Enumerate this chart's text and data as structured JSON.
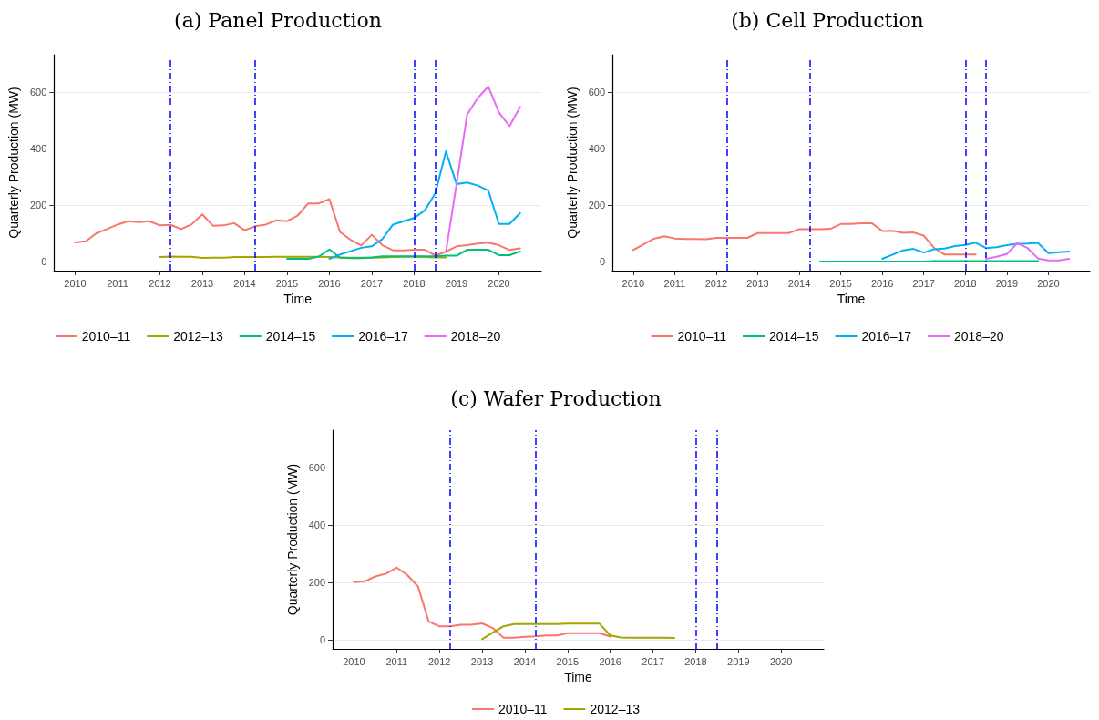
{
  "chart_data": [
    {
      "type": "line",
      "title": "(a) Panel Production",
      "xlabel": "Time",
      "ylabel": "Quarterly Production (MW)",
      "xlim": [
        2009.5,
        2021
      ],
      "xticks": [
        2010,
        2011,
        2012,
        2013,
        2014,
        2015,
        2016,
        2017,
        2018,
        2019,
        2020
      ],
      "ylim": [
        -32,
        732
      ],
      "yticks": [
        0,
        200,
        400,
        600
      ],
      "grid": "y",
      "legend": "bottom",
      "marker": "none",
      "line_style": "solid",
      "ref_lines": [
        {
          "axis": "x",
          "value": 2012.25,
          "color": "#0000ff",
          "line_style": "dashed"
        },
        {
          "axis": "x",
          "value": 2014.25,
          "color": "#0000ff",
          "line_style": "dashed"
        },
        {
          "axis": "x",
          "value": 2018,
          "color": "#0000ff",
          "line_style": "dashed"
        },
        {
          "axis": "x",
          "value": 2018.5,
          "color": "#0000ff",
          "line_style": "dashed"
        }
      ],
      "series": [
        {
          "name": "2010–11",
          "color": "#f8766d",
          "x": [
            2010,
            2010.25,
            2010.5,
            2010.75,
            2011,
            2011.25,
            2011.5,
            2011.75,
            2012,
            2012.25,
            2012.5,
            2012.75,
            2013,
            2013.25,
            2013.5,
            2013.75,
            2014,
            2014.25,
            2014.5,
            2014.75,
            2015,
            2015.25,
            2015.5,
            2015.75,
            2016,
            2016.25,
            2016.5,
            2016.75,
            2017,
            2017.25,
            2017.5,
            2017.75,
            2018,
            2018.25,
            2018.5,
            2018.75,
            2019,
            2019.25,
            2019.5,
            2019.75,
            2020,
            2020.25,
            2020.5
          ],
          "values": [
            68,
            72,
            100,
            115,
            131,
            143,
            140,
            143,
            128,
            130,
            115,
            132,
            167,
            127,
            128,
            136,
            111,
            125,
            131,
            146,
            143,
            163,
            206,
            206,
            221,
            105,
            77,
            57,
            95,
            58,
            40,
            40,
            42,
            42,
            22,
            35,
            54,
            58,
            64,
            67,
            58,
            41,
            47
          ]
        },
        {
          "name": "2012–13",
          "color": "#a3a500",
          "x": [
            2012,
            2012.25,
            2012.5,
            2012.75,
            2013,
            2013.25,
            2013.5,
            2013.75,
            2014,
            2014.25,
            2014.5,
            2014.75,
            2015,
            2015.25,
            2015.5,
            2015.75,
            2016,
            2016.25,
            2016.5,
            2016.75,
            2017,
            2017.25,
            2017.5,
            2017.75,
            2018,
            2018.25,
            2018.5,
            2018.75
          ],
          "values": [
            16,
            18,
            17,
            17,
            13,
            14,
            14,
            16,
            16,
            16,
            16,
            17,
            17,
            17,
            17,
            17,
            16,
            15,
            14,
            14,
            14,
            15,
            16,
            17,
            17,
            16,
            15,
            15
          ]
        },
        {
          "name": "2014–15",
          "color": "#00bf7d",
          "x": [
            2015,
            2015.25,
            2015.5,
            2015.75,
            2016,
            2016.25,
            2016.5,
            2016.75,
            2017,
            2017.25,
            2017.5,
            2017.75,
            2018,
            2018.25,
            2018.5,
            2018.75,
            2019,
            2019.25,
            2019.5,
            2019.75,
            2020,
            2020.25,
            2020.5
          ],
          "values": [
            10,
            10,
            10,
            18,
            43,
            14,
            12,
            12,
            15,
            19,
            19,
            19,
            19,
            19,
            19,
            21,
            21,
            42,
            42,
            42,
            23,
            23,
            36
          ]
        },
        {
          "name": "2016–17",
          "color": "#00b0f6",
          "x": [
            2016,
            2016.25,
            2016.5,
            2016.75,
            2017,
            2017.25,
            2017.5,
            2017.75,
            2018,
            2018.25,
            2018.5,
            2018.75,
            2019,
            2019.25,
            2019.5,
            2019.75,
            2020,
            2020.25,
            2020.5
          ],
          "values": [
            10,
            25,
            37,
            49,
            54,
            80,
            131,
            143,
            154,
            181,
            242,
            390,
            274,
            280,
            269,
            251,
            133,
            133,
            172
          ]
        },
        {
          "name": "2018–20",
          "color": "#e76bf3",
          "x": [
            2018.75,
            2019,
            2019.25,
            2019.5,
            2019.75,
            2020,
            2020.25,
            2020.5
          ],
          "values": [
            35,
            275,
            520,
            579,
            619,
            528,
            479,
            547
          ]
        }
      ]
    },
    {
      "type": "line",
      "title": "(b) Cell Production",
      "xlabel": "Time",
      "ylabel": "Quarterly Production (MW)",
      "xlim": [
        2009.5,
        2021
      ],
      "xticks": [
        2010,
        2011,
        2012,
        2013,
        2014,
        2015,
        2016,
        2017,
        2018,
        2019,
        2020
      ],
      "ylim": [
        -32,
        732
      ],
      "yticks": [
        0,
        200,
        400,
        600
      ],
      "grid": "y",
      "legend": "bottom",
      "marker": "none",
      "line_style": "solid",
      "ref_lines": [
        {
          "axis": "x",
          "value": 2012.25,
          "color": "#0000ff",
          "line_style": "dashed"
        },
        {
          "axis": "x",
          "value": 2014.25,
          "color": "#0000ff",
          "line_style": "dashed"
        },
        {
          "axis": "x",
          "value": 2018,
          "color": "#0000ff",
          "line_style": "dashed"
        },
        {
          "axis": "x",
          "value": 2018.5,
          "color": "#0000ff",
          "line_style": "dashed"
        }
      ],
      "series": [
        {
          "name": "2010–11",
          "color": "#f8766d",
          "x": [
            2010,
            2010.25,
            2010.5,
            2010.75,
            2011,
            2011.25,
            2011.5,
            2011.75,
            2012,
            2012.25,
            2012.5,
            2012.75,
            2013,
            2013.25,
            2013.5,
            2013.75,
            2014,
            2014.25,
            2014.5,
            2014.75,
            2015,
            2015.25,
            2015.5,
            2015.75,
            2016,
            2016.25,
            2016.5,
            2016.75,
            2017,
            2017.25,
            2017.5,
            2017.75,
            2018,
            2018.25
          ],
          "values": [
            41,
            61,
            81,
            90,
            82,
            80,
            80,
            79,
            84,
            84,
            84,
            84,
            101,
            101,
            101,
            101,
            115,
            115,
            115,
            116,
            133,
            133,
            136,
            136,
            108,
            109,
            102,
            103,
            92,
            48,
            25,
            25,
            25,
            25
          ]
        },
        {
          "name": "2014–15",
          "color": "#00bf7d",
          "x": [
            2014.5,
            2014.75,
            2015,
            2015.25,
            2015.5,
            2015.75,
            2016,
            2016.25,
            2016.5,
            2016.75,
            2017,
            2017.25,
            2017.5,
            2017.75,
            2018,
            2018.25,
            2018.5,
            2018.75,
            2019,
            2019.25,
            2019.5,
            2019.75
          ],
          "values": [
            0,
            0,
            0,
            0,
            0,
            0,
            0,
            0,
            0,
            0,
            0,
            2,
            2,
            2,
            2,
            2,
            2,
            2,
            2,
            2,
            2,
            2
          ]
        },
        {
          "name": "2016–17",
          "color": "#00b0f6",
          "x": [
            2016,
            2016.25,
            2016.5,
            2016.75,
            2017,
            2017.25,
            2017.5,
            2017.75,
            2018,
            2018.25,
            2018.5,
            2018.75,
            2019,
            2019.25,
            2019.5,
            2019.75,
            2020,
            2020.25,
            2020.5
          ],
          "values": [
            10,
            25,
            40,
            45,
            32,
            44,
            46,
            55,
            59,
            67,
            48,
            51,
            58,
            63,
            64,
            66,
            30,
            33,
            36
          ]
        },
        {
          "name": "2018–20",
          "color": "#e76bf3",
          "x": [
            2018.5,
            2018.75,
            2019,
            2019.25,
            2019.5,
            2019.75,
            2020,
            2020.25,
            2020.5
          ],
          "values": [
            10,
            17,
            27,
            65,
            48,
            11,
            4,
            4,
            10
          ]
        }
      ]
    },
    {
      "type": "line",
      "title": "(c) Wafer Production",
      "xlabel": "Time",
      "ylabel": "Quarterly Production (MW)",
      "xlim": [
        2009.5,
        2021
      ],
      "xticks": [
        2010,
        2011,
        2012,
        2013,
        2014,
        2015,
        2016,
        2017,
        2018,
        2019,
        2020
      ],
      "ylim": [
        -32,
        732
      ],
      "yticks": [
        0,
        200,
        400,
        600
      ],
      "grid": "y",
      "legend": "bottom",
      "marker": "none",
      "line_style": "solid",
      "ref_lines": [
        {
          "axis": "x",
          "value": 2012.25,
          "color": "#0000ff",
          "line_style": "dashed"
        },
        {
          "axis": "x",
          "value": 2014.25,
          "color": "#0000ff",
          "line_style": "dashed"
        },
        {
          "axis": "x",
          "value": 2018,
          "color": "#0000ff",
          "line_style": "dashed"
        },
        {
          "axis": "x",
          "value": 2018.5,
          "color": "#0000ff",
          "line_style": "dashed"
        }
      ],
      "series": [
        {
          "name": "2010–11",
          "color": "#f8766d",
          "x": [
            2010,
            2010.25,
            2010.5,
            2010.75,
            2011,
            2011.25,
            2011.5,
            2011.75,
            2012,
            2012.25,
            2012.5,
            2012.75,
            2013,
            2013.25,
            2013.5,
            2013.75,
            2014,
            2014.25,
            2014.5,
            2014.75,
            2015,
            2015.25,
            2015.5,
            2015.75,
            2016
          ],
          "values": [
            201,
            204,
            221,
            231,
            252,
            226,
            186,
            63,
            47,
            47,
            52,
            52,
            57,
            41,
            7,
            7,
            10,
            12,
            15,
            15,
            23,
            23,
            23,
            23,
            11
          ]
        },
        {
          "name": "2012–13",
          "color": "#a3a500",
          "x": [
            2013,
            2013.25,
            2013.5,
            2013.75,
            2014,
            2014.25,
            2014.5,
            2014.75,
            2015,
            2015.25,
            2015.5,
            2015.75,
            2016,
            2016.25,
            2016.5,
            2016.75,
            2017,
            2017.25,
            2017.5
          ],
          "values": [
            2,
            25,
            47,
            55,
            55,
            55,
            55,
            55,
            56,
            56,
            56,
            56,
            15,
            8,
            7,
            7,
            7,
            7,
            6
          ]
        }
      ]
    }
  ]
}
